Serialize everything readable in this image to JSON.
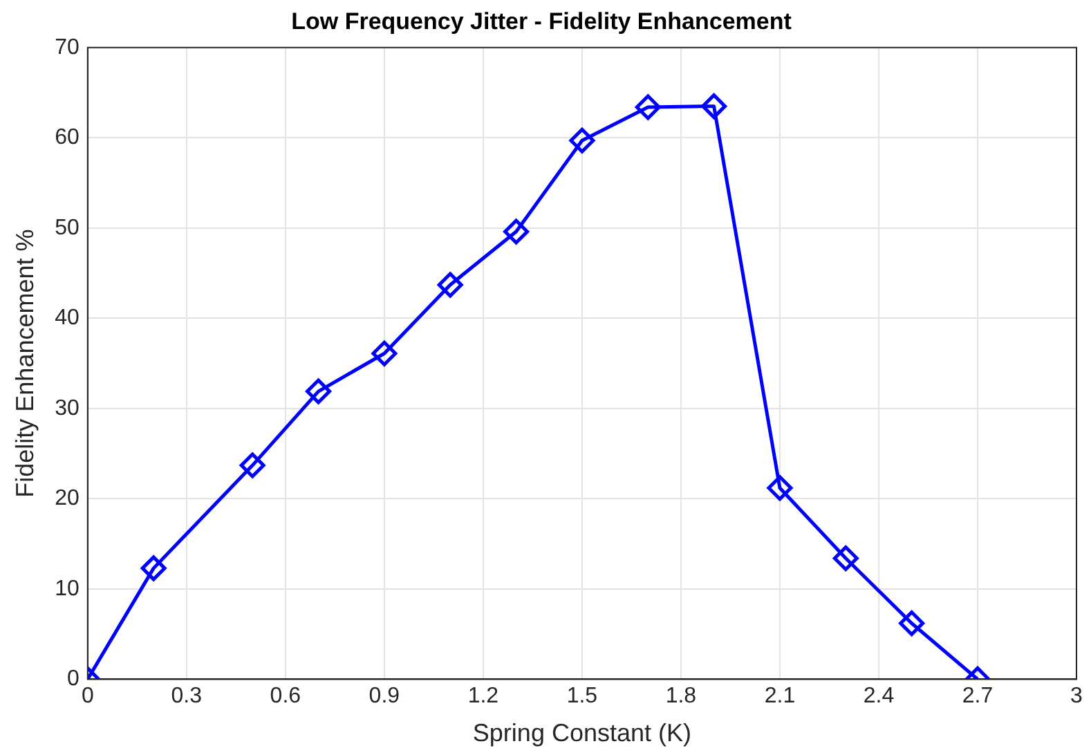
{
  "chart_data": {
    "type": "line",
    "title": "Low Frequency Jitter - Fidelity Enhancement",
    "xlabel": "Spring Constant (K)",
    "ylabel": "Fidelity Enhancement %",
    "x": [
      0,
      0.2,
      0.5,
      0.7,
      0.9,
      1.1,
      1.3,
      1.5,
      1.7,
      1.9,
      2.1,
      2.3,
      2.5,
      2.7
    ],
    "series": [
      {
        "color": "#0000ff",
        "values": [
          0,
          12.3,
          23.7,
          31.9,
          36.1,
          43.7,
          49.6,
          59.7,
          63.4,
          63.5,
          21.2,
          13.4,
          6.2,
          0
        ]
      }
    ],
    "xlim": [
      0,
      3
    ],
    "ylim": [
      0,
      70
    ],
    "xticks": [
      0,
      0.3,
      0.6,
      0.9,
      1.2,
      1.5,
      1.8,
      2.1,
      2.4,
      2.7,
      3
    ],
    "yticks": [
      0,
      10,
      20,
      30,
      40,
      50,
      60,
      70
    ],
    "grid": true,
    "marker": "diamond",
    "line_style": "solid"
  }
}
